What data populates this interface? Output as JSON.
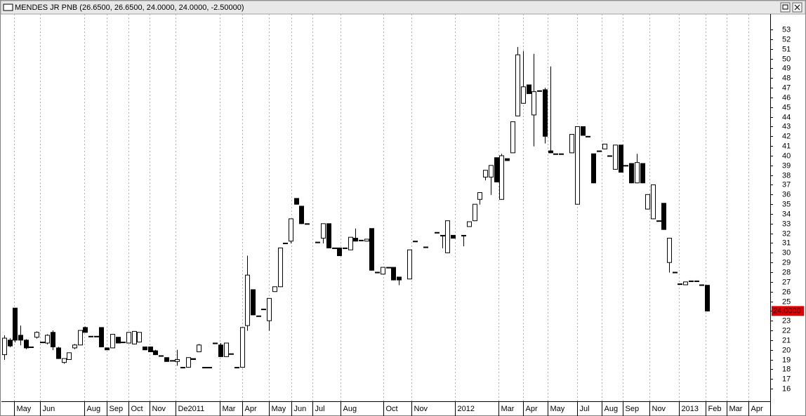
{
  "chart_data": {
    "type": "candlestick",
    "title": "MENDES JR PNB (26.6500, 26.6500, 24.0000, 24.0000, -2.50000)",
    "x": [
      0,
      1,
      2,
      3,
      4,
      5,
      6,
      7,
      8,
      9,
      10,
      11,
      12,
      13,
      14,
      15,
      16,
      17,
      18,
      19,
      20,
      21,
      22,
      23,
      24,
      25,
      26,
      27,
      28,
      29,
      30,
      31,
      32,
      33,
      34,
      35,
      36,
      37,
      38,
      39,
      40,
      41,
      42,
      43,
      44,
      45,
      46,
      47,
      48,
      49,
      50,
      51,
      52,
      53,
      54,
      55,
      56,
      58,
      59,
      60,
      61,
      62,
      63,
      64,
      65,
      66,
      67,
      68,
      69,
      70,
      71,
      72,
      73,
      75,
      76,
      78,
      80,
      81,
      82,
      83,
      85,
      86,
      87,
      88,
      89,
      90,
      91,
      92,
      93,
      94,
      95,
      96,
      97,
      98,
      99,
      100,
      101,
      102,
      103,
      105,
      106,
      107,
      108,
      109,
      110,
      111,
      112,
      113,
      114,
      115,
      116,
      117,
      118,
      119,
      120,
      121,
      122,
      123,
      124,
      125,
      126,
      127,
      128,
      129,
      130
    ],
    "open": [
      19.5,
      21,
      24.3,
      21.5,
      21,
      20.3,
      21.3,
      20.8,
      20.7,
      21.8,
      20.2,
      18.7,
      19,
      20.2,
      20.5,
      22.3,
      21.4,
      21.4,
      22.3,
      20.2,
      20.2,
      21.3,
      20.8,
      20.7,
      20.6,
      20.8,
      20.3,
      20.3,
      19.9,
      19.4,
      19.2,
      18.9,
      18.8,
      18.2,
      18.2,
      19.1,
      19.8,
      18.2,
      18.2,
      20.7,
      20.5,
      19.3,
      19.6,
      18.2,
      18.2,
      22.5,
      26.2,
      23.5,
      24.2,
      23,
      26,
      26.5,
      31,
      31.2,
      35.6,
      34.8,
      33,
      31.1,
      31.5,
      33,
      30.5,
      30.5,
      30.5,
      30.3,
      31.5,
      31.3,
      31.2,
      32.5,
      28,
      27.8,
      28.5,
      28.5,
      27.5,
      27.3,
      31.2,
      30.6,
      32.1,
      31.8,
      30,
      31.8,
      31.8,
      32.7,
      33.3,
      35.5,
      37.8,
      37.8,
      39.8,
      35.5,
      39.7,
      40.3,
      44.1,
      45.4,
      47.3,
      44.2,
      46.7,
      46.8,
      40.5,
      40.2,
      40.2,
      40.3,
      35,
      43,
      42,
      40.2,
      40.5,
      40.7,
      40,
      38.6,
      41.1,
      39,
      39.2,
      37.2,
      39.2,
      34.5,
      33.5,
      33.3,
      35.1,
      29,
      28,
      26.8,
      26.7,
      27.1,
      27.1,
      26.7,
      26.65
    ],
    "high": [
      21.5,
      21.2,
      24.3,
      22.5,
      21.1,
      20.3,
      21.9,
      20.8,
      21.6,
      22,
      20.3,
      19.1,
      19.7,
      20.6,
      22,
      22.4,
      21.4,
      21.4,
      22.3,
      20.2,
      21.6,
      21.3,
      20.8,
      21.8,
      21.9,
      21.8,
      20.3,
      20.3,
      20,
      19.4,
      19.2,
      18.9,
      20,
      18.2,
      19.2,
      19.1,
      20.6,
      18.2,
      18.2,
      20.7,
      20.7,
      20.7,
      19.6,
      18.2,
      22.3,
      29.7,
      26.2,
      23.5,
      24.2,
      25.3,
      26.5,
      30.5,
      31,
      33.5,
      35.6,
      34.8,
      33,
      31.1,
      33,
      33,
      30.5,
      30.5,
      30.5,
      31.6,
      32.5,
      31.3,
      31.4,
      32.5,
      28,
      28.5,
      28.5,
      28.5,
      27.5,
      30.3,
      31.2,
      30.6,
      32.1,
      31.8,
      33.3,
      31.8,
      31.8,
      33.2,
      35,
      36.2,
      38.5,
      39,
      39.8,
      40.2,
      39.7,
      43.5,
      51.2,
      50.8,
      47.3,
      50.5,
      46.7,
      47,
      49.2,
      40.2,
      40.2,
      42.2,
      43,
      43,
      42,
      40.2,
      40.5,
      41.2,
      40,
      41.1,
      41.1,
      39,
      39.2,
      40.2,
      39.2,
      36,
      37,
      33.3,
      35.1,
      31.5,
      28,
      26.8,
      27,
      27.1,
      27.1,
      26.7,
      26.65
    ],
    "low": [
      19,
      20.3,
      20.8,
      20.5,
      20.1,
      20.3,
      21.2,
      20.8,
      20.6,
      20,
      19.1,
      18.6,
      19,
      20.1,
      20.5,
      21.8,
      21.4,
      21.4,
      20.3,
      20,
      20.2,
      20.7,
      20.8,
      20.7,
      20.6,
      20.8,
      20,
      19.8,
      19.5,
      19.4,
      18.8,
      18.9,
      18.4,
      18.2,
      18.2,
      19,
      19.8,
      18.2,
      18.2,
      20.7,
      19.3,
      19.3,
      19.6,
      18.2,
      18.2,
      22,
      23.6,
      23.5,
      24.2,
      22,
      26,
      26.5,
      31,
      31,
      35,
      33,
      33,
      31.1,
      31,
      30.5,
      30.5,
      29.7,
      30.5,
      30.3,
      31.2,
      31.3,
      31.2,
      28.2,
      28,
      27.8,
      28.5,
      27.2,
      26.7,
      27.3,
      31.2,
      30.6,
      32.1,
      30.5,
      30,
      31.5,
      30.7,
      32.7,
      33.3,
      35,
      37.5,
      36,
      37.3,
      35.5,
      39.5,
      40.3,
      44.1,
      45.4,
      46.4,
      41,
      46.7,
      41.3,
      40.3,
      40.2,
      40.2,
      40.3,
      35,
      42.1,
      42,
      37.2,
      40.5,
      40.7,
      40,
      38.6,
      38.3,
      39,
      37.2,
      37.2,
      37.2,
      34.5,
      33.5,
      33.3,
      32.4,
      28,
      28,
      26.8,
      26.7,
      27.1,
      27.1,
      26.7,
      24
    ],
    "close": [
      21.2,
      20.4,
      21,
      21,
      20.2,
      20.3,
      21.8,
      20.8,
      21.5,
      20.3,
      19.1,
      19.1,
      19.7,
      20.5,
      22,
      21.8,
      21.4,
      21.4,
      20.3,
      20,
      21.6,
      20.7,
      20.8,
      21.8,
      21.9,
      21.8,
      20,
      19.8,
      19.5,
      19.4,
      18.8,
      18.9,
      19,
      18.2,
      19.2,
      19,
      20.5,
      18.2,
      18.2,
      20.7,
      19.3,
      20.7,
      19.6,
      18.2,
      22.3,
      27.7,
      23.6,
      23.5,
      24.2,
      25.3,
      26.5,
      30.5,
      31,
      33.5,
      35,
      33,
      33,
      31.1,
      33,
      30.5,
      30.5,
      29.7,
      30.5,
      31.6,
      31.2,
      31.3,
      31.4,
      28.2,
      28,
      28.5,
      28.5,
      27.2,
      27.2,
      30.3,
      31.2,
      30.6,
      32.1,
      31.8,
      33.3,
      31.5,
      31.8,
      33.2,
      35,
      36.2,
      38.5,
      39,
      37.3,
      40,
      39.5,
      43.5,
      50.4,
      47.1,
      46.4,
      46.6,
      46.7,
      42,
      40.3,
      40.2,
      40.2,
      42.2,
      43,
      42.1,
      42,
      37.2,
      40.5,
      41.2,
      40,
      41.1,
      38.3,
      39,
      37.2,
      39.3,
      37.2,
      36,
      37,
      33.3,
      32.4,
      31.5,
      28,
      26.8,
      27,
      27.1,
      27.1,
      26.7,
      24
    ],
    "up_color": "#ffffff",
    "down_color": "#000000",
    "xlim": [
      -0.5,
      141.7
    ],
    "xticks": [
      {
        "value": 1.8,
        "label": "May"
      },
      {
        "value": 6.6,
        "label": "Jun"
      },
      {
        "value": 14.8,
        "label": "Aug"
      },
      {
        "value": 19,
        "label": "Sep"
      },
      {
        "value": 23,
        "label": "Oct"
      },
      {
        "value": 26.9,
        "label": "Nov"
      },
      {
        "value": 31.7,
        "label": "De2011"
      },
      {
        "value": 39.9,
        "label": "Mar"
      },
      {
        "value": 44,
        "label": "Apr"
      },
      {
        "value": 49,
        "label": "May"
      },
      {
        "value": 53.1,
        "label": "Jun"
      },
      {
        "value": 57,
        "label": "Jul"
      },
      {
        "value": 62.2,
        "label": "Aug"
      },
      {
        "value": 70.1,
        "label": "Oct"
      },
      {
        "value": 75.3,
        "label": "Nov"
      },
      {
        "value": 83.4,
        "label": "2012"
      },
      {
        "value": 91.4,
        "label": "Mar"
      },
      {
        "value": 96,
        "label": "Apr"
      },
      {
        "value": 100.5,
        "label": "May"
      },
      {
        "value": 106,
        "label": "Jul"
      },
      {
        "value": 110.5,
        "label": "Aug"
      },
      {
        "value": 114.4,
        "label": "Sep"
      },
      {
        "value": 119.4,
        "label": "Nov"
      },
      {
        "value": 124.8,
        "label": "2013"
      },
      {
        "value": 129.7,
        "label": "Feb"
      },
      {
        "value": 133.6,
        "label": "Mar"
      },
      {
        "value": 137.7,
        "label": "Apr"
      }
    ],
    "ylim": [
      14.7,
      54.6
    ],
    "yticks": [
      16,
      17,
      18,
      19,
      20,
      21,
      22,
      23,
      24,
      25,
      26,
      27,
      28,
      29,
      30,
      31,
      32,
      33,
      34,
      35,
      36,
      37,
      38,
      39,
      40,
      41,
      42,
      43,
      44,
      45,
      46,
      47,
      48,
      49,
      50,
      51,
      52,
      53
    ],
    "last_value": {
      "value": 24,
      "label": "24.0000"
    },
    "last_value_color": "#e00000",
    "grid": true
  }
}
